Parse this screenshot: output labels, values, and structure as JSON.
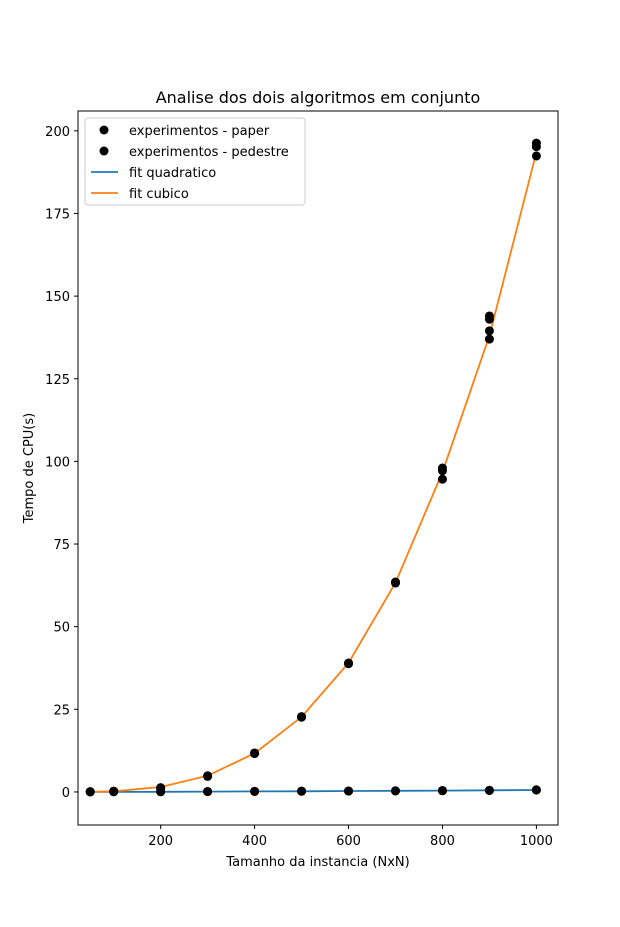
{
  "chart_data": {
    "type": "scatter",
    "title": "Analise dos dois algoritmos em conjunto",
    "xlabel": "Tamanho da instancia (NxN)",
    "ylabel": "Tempo de CPU(s)",
    "xlim": [
      24,
      1046
    ],
    "ylim": [
      -10,
      206
    ],
    "x_ticks": [
      200,
      400,
      600,
      800,
      1000
    ],
    "y_ticks": [
      0,
      25,
      50,
      75,
      100,
      125,
      150,
      175,
      200
    ],
    "grid": false,
    "legend_position": "top-left",
    "series": [
      {
        "name": "experimentos - paper",
        "kind": "points",
        "color": "#000000",
        "points": [
          [
            50,
            0.0
          ],
          [
            100,
            0.05
          ],
          [
            200,
            0.05
          ],
          [
            300,
            0.1
          ],
          [
            400,
            0.15
          ],
          [
            500,
            0.2
          ],
          [
            600,
            0.25
          ],
          [
            700,
            0.3
          ],
          [
            800,
            0.35
          ],
          [
            900,
            0.45
          ],
          [
            1000,
            0.55
          ],
          [
            50,
            0.1
          ],
          [
            100,
            0.1
          ],
          [
            200,
            0.1
          ],
          [
            300,
            0.15
          ],
          [
            400,
            0.2
          ],
          [
            500,
            0.25
          ],
          [
            600,
            0.3
          ],
          [
            700,
            0.35
          ],
          [
            800,
            0.45
          ],
          [
            900,
            0.5
          ],
          [
            1000,
            0.65
          ]
        ]
      },
      {
        "name": "experimentos - pedestre",
        "kind": "points",
        "color": "#000000",
        "points": [
          [
            50,
            0.05
          ],
          [
            100,
            0.15
          ],
          [
            100,
            0.25
          ],
          [
            200,
            1.3
          ],
          [
            200,
            1.0
          ],
          [
            300,
            4.9
          ],
          [
            300,
            4.7
          ],
          [
            400,
            11.8
          ],
          [
            400,
            11.6
          ],
          [
            500,
            22.8
          ],
          [
            500,
            22.6
          ],
          [
            600,
            39.0
          ],
          [
            600,
            38.8
          ],
          [
            700,
            63.2
          ],
          [
            700,
            63.5
          ],
          [
            800,
            98.0
          ],
          [
            800,
            97.2
          ],
          [
            800,
            94.6
          ],
          [
            900,
            144.0
          ],
          [
            900,
            143.0
          ],
          [
            900,
            139.5
          ],
          [
            900,
            137.0
          ],
          [
            1000,
            196.3
          ],
          [
            1000,
            195.2
          ],
          [
            1000,
            192.4
          ]
        ]
      },
      {
        "name": "fit quadratico",
        "kind": "line",
        "color": "#1f77b4",
        "x": [
          50,
          100,
          200,
          300,
          400,
          500,
          600,
          700,
          800,
          900,
          1000
        ],
        "y": [
          0.0,
          0.02,
          0.05,
          0.1,
          0.15,
          0.2,
          0.28,
          0.35,
          0.42,
          0.5,
          0.6
        ]
      },
      {
        "name": "fit cubico",
        "kind": "line",
        "color": "#ff7f0e",
        "x": [
          50,
          100,
          200,
          300,
          400,
          500,
          600,
          700,
          800,
          900,
          1000
        ],
        "y": [
          0.0,
          0.2,
          1.5,
          4.9,
          11.7,
          22.7,
          39.0,
          63.3,
          96.8,
          138.0,
          193.5
        ]
      }
    ]
  }
}
